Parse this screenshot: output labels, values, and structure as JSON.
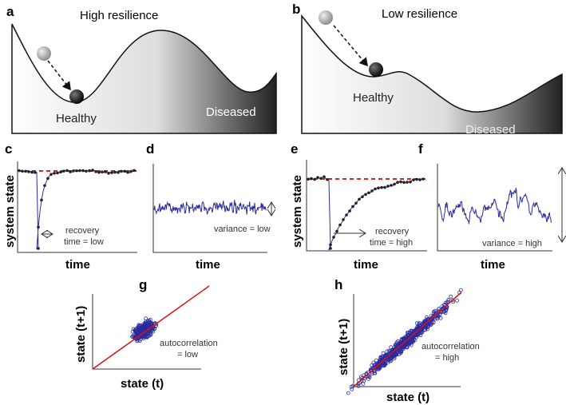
{
  "panels": {
    "a": {
      "label": "a",
      "title": "High resilience",
      "healthy": "Healthy",
      "diseased": "Diseased"
    },
    "b": {
      "label": "b",
      "title": "Low resilience",
      "healthy": "Healthy",
      "diseased": "Diseased"
    },
    "c": {
      "label": "c",
      "ylabel": "system state",
      "xlabel": "time",
      "ann1": "recovery",
      "ann2": "time = low"
    },
    "d": {
      "label": "d",
      "xlabel": "time",
      "ann": "variance = low"
    },
    "e": {
      "label": "e",
      "ylabel": "system state",
      "xlabel": "time",
      "ann1": "recovery",
      "ann2": "time = high"
    },
    "f": {
      "label": "f",
      "xlabel": "time",
      "ann": "variance = high"
    },
    "g": {
      "label": "g",
      "ylabel": "state (t+1)",
      "xlabel": "state (t)",
      "ann1": "autocorrelation",
      "ann2": "= low"
    },
    "h": {
      "label": "h",
      "ylabel": "state (t+1)",
      "xlabel": "state (t)",
      "ann1": "autocorrelation",
      "ann2": "= high"
    }
  },
  "colors": {
    "series": "#2b2b9e",
    "equilibrium": "#e02020",
    "points": "#222222",
    "fit": "#dd1111"
  }
}
